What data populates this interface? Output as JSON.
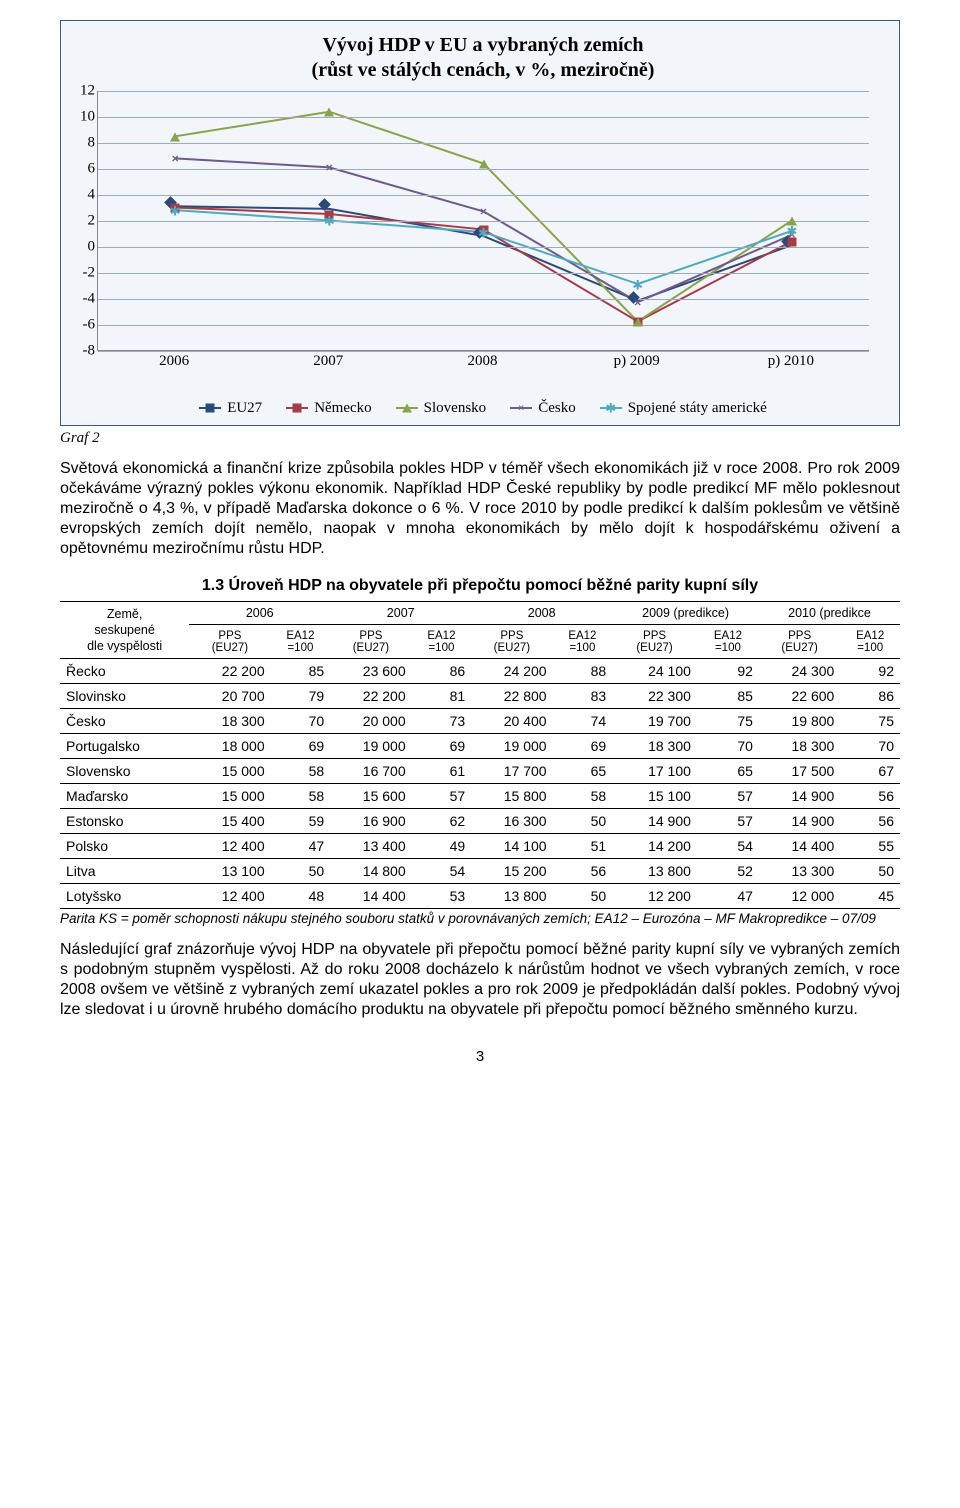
{
  "chart": {
    "type": "line",
    "title_l1": "Vývoj HDP v EU a vybraných zemích",
    "title_l2": "(růst ve stálých cenách, v %, meziročně)",
    "background_color": "#f2f5fa",
    "border_color": "#3a5a7a",
    "ylim": [
      -8,
      12
    ],
    "ytick_step": 2,
    "ytick_labels": [
      "-8",
      "-6",
      "-4",
      "-2",
      "0",
      "2",
      "4",
      "6",
      "8",
      "10",
      "12"
    ],
    "grid_color": "#9faac1",
    "x_categories": [
      "2006",
      "2007",
      "2008",
      "p) 2009",
      "p) 2010"
    ],
    "series": [
      {
        "name": "EU27",
        "color": "#2a4a7a",
        "marker": "diamond",
        "values": [
          3.1,
          2.9,
          0.8,
          -4.2,
          0.1
        ]
      },
      {
        "name": "Německo",
        "color": "#a63b48",
        "marker": "square",
        "values": [
          3.0,
          2.5,
          1.3,
          -5.8,
          0.4
        ]
      },
      {
        "name": "Slovensko",
        "color": "#8aa24a",
        "marker": "triangle",
        "values": [
          8.5,
          10.4,
          6.4,
          -5.8,
          2.0
        ]
      },
      {
        "name": "Česko",
        "color": "#6e5a8c",
        "marker": "x",
        "values": [
          6.8,
          6.1,
          2.7,
          -4.3,
          0.9
        ]
      },
      {
        "name": "Spojené státy americké",
        "color": "#4fa9bf",
        "marker": "star",
        "values": [
          2.8,
          2.0,
          1.1,
          -2.9,
          1.2
        ]
      }
    ]
  },
  "graf_label": "Graf 2",
  "para1": "Světová ekonomická a finanční krize způsobila pokles HDP v téměř všech ekonomikách již v roce 2008. Pro rok 2009 očekáváme výrazný pokles výkonu ekonomik. Například HDP České republiky by podle predikcí MF mělo poklesnout meziročně o 4,3 %, v případě Maďarska dokonce o 6 %. V roce 2010 by podle predikcí k dalším poklesům ve většině evropských zemích dojít nemělo, naopak v mnoha ekonomikách by mělo dojít k hospodářskému oživení a opětovnému meziročnímu růstu HDP.",
  "section_heading": "1.3 Úroveň HDP na obyvatele při přepočtu pomocí běžné parity kupní síly",
  "table": {
    "row_header_l1": "Země,",
    "row_header_l2": "seskupené",
    "row_header_l3": "dle vyspělosti",
    "year_headers": [
      "2006",
      "2007",
      "2008",
      "2009 (predikce)",
      "2010 (predikce"
    ],
    "sub_pps": "PPS (EU27)",
    "sub_ea": "EA12 =100",
    "rows": [
      {
        "c": "Řecko",
        "v": [
          "22 200",
          "85",
          "23 600",
          "86",
          "24 200",
          "88",
          "24 100",
          "92",
          "24 300",
          "92"
        ]
      },
      {
        "c": "Slovinsko",
        "v": [
          "20 700",
          "79",
          "22 200",
          "81",
          "22 800",
          "83",
          "22 300",
          "85",
          "22 600",
          "86"
        ]
      },
      {
        "c": "Česko",
        "v": [
          "18 300",
          "70",
          "20 000",
          "73",
          "20 400",
          "74",
          "19 700",
          "75",
          "19 800",
          "75"
        ]
      },
      {
        "c": "Portugalsko",
        "v": [
          "18 000",
          "69",
          "19 000",
          "69",
          "19 000",
          "69",
          "18 300",
          "70",
          "18 300",
          "70"
        ]
      },
      {
        "c": "Slovensko",
        "v": [
          "15 000",
          "58",
          "16 700",
          "61",
          "17 700",
          "65",
          "17 100",
          "65",
          "17 500",
          "67"
        ]
      },
      {
        "c": "Maďarsko",
        "v": [
          "15 000",
          "58",
          "15 600",
          "57",
          "15 800",
          "58",
          "15 100",
          "57",
          "14 900",
          "56"
        ]
      },
      {
        "c": "Estonsko",
        "v": [
          "15 400",
          "59",
          "16 900",
          "62",
          "16 300",
          "50",
          "14 900",
          "57",
          "14 900",
          "56"
        ]
      },
      {
        "c": "Polsko",
        "v": [
          "12 400",
          "47",
          "13 400",
          "49",
          "14 100",
          "51",
          "14 200",
          "54",
          "14 400",
          "55"
        ]
      },
      {
        "c": "Litva",
        "v": [
          "13 100",
          "50",
          "14 800",
          "54",
          "15 200",
          "56",
          "13 800",
          "52",
          "13 300",
          "50"
        ]
      },
      {
        "c": "Lotyšsko",
        "v": [
          "12 400",
          "48",
          "14 400",
          "53",
          "13 800",
          "50",
          "12 200",
          "47",
          "12 000",
          "45"
        ]
      }
    ],
    "note": "Parita KS = poměr schopnosti nákupu stejného souboru statků v porovnávaných zemích;  EA12 – Eurozóna – MF Makropredikce – 07/09"
  },
  "para2": "Následující graf znázorňuje vývoj HDP na obyvatele při přepočtu pomocí běžné parity kupní síly ve vybraných zemích s podobným stupněm vyspělosti. Až do roku 2008 docházelo k nárůstům hodnot ve všech vybraných zemích, v roce 2008 ovšem ve většině z vybraných zemí ukazatel pokles a pro rok 2009 je předpokládán další pokles. Podobný vývoj lze sledovat i u úrovně hrubého domácího produktu na obyvatele při přepočtu pomocí běžného směnného kurzu.",
  "page_number": "3"
}
